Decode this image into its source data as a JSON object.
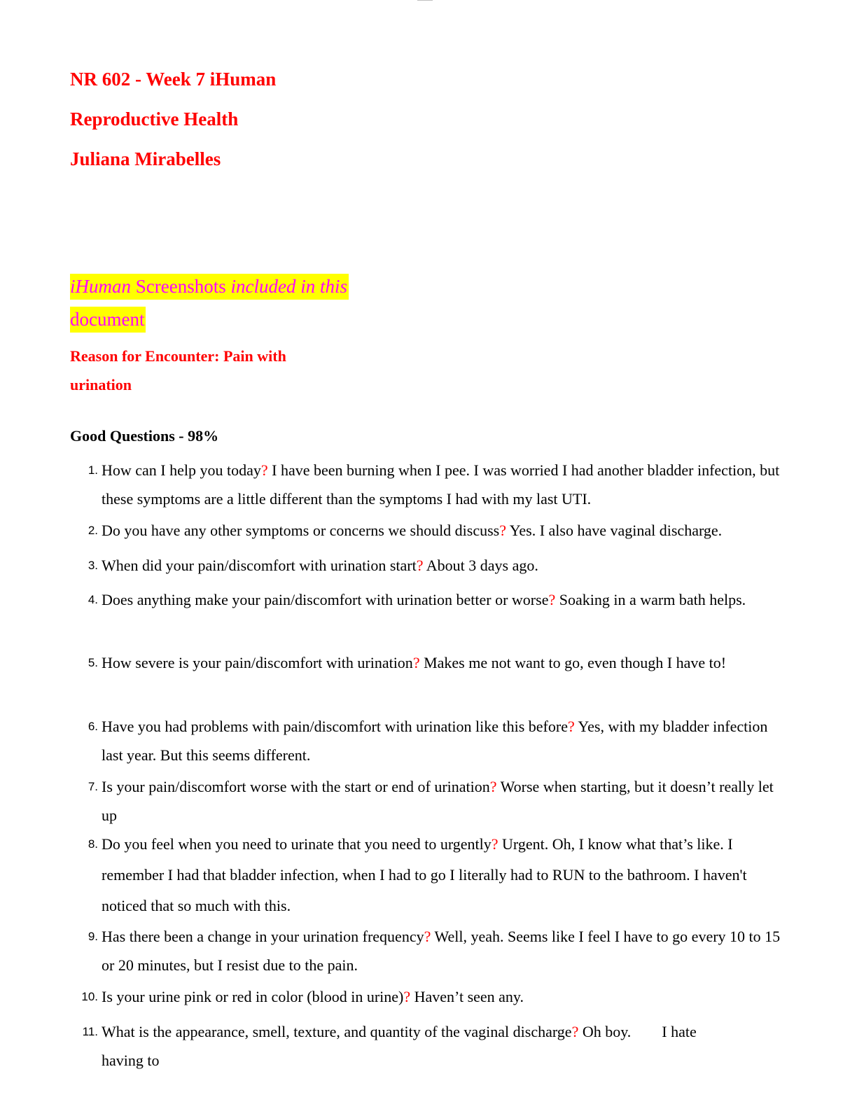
{
  "header": {
    "course": "NR 602 - Week 7 iHuman",
    "topic": "Reproductive Health",
    "student": "Juliana Mirabelles"
  },
  "note": {
    "line1_a": "iHuman",
    "line1_b": " Screenshots ",
    "line1_c": "included in this",
    "line2": "document"
  },
  "reason": "Reason for Encounter: Pain with urination",
  "section_title": "Good Questions - 98%",
  "questions": [
    {
      "num": "1.",
      "q": "How can I help you today",
      "a": " I have been burning when I pee. I was worried I had another bladder infection, but these symptoms are a little different than the symptoms I had with my last UTI."
    },
    {
      "num": "2.",
      "q": "Do you have any other symptoms or concerns we should discuss",
      "a": " Yes. I also have vaginal discharge."
    },
    {
      "num": "3.",
      "q": "When did your pain/discomfort with urination start",
      "a": " About 3 days ago."
    },
    {
      "num": "4.",
      "q": "Does anything make your pain/discomfort with urination better or worse",
      "a": " Soaking in a warm bath helps."
    },
    {
      "num": "5.",
      "q": "How severe is your pain/discomfort with urination",
      "a": " Makes me not want to go, even though I have to!"
    },
    {
      "num": "6.",
      "q": "Have you had problems with pain/discomfort with urination like this before",
      "a": " Yes, with my bladder infection last year. But this seems different."
    },
    {
      "num": "7.",
      "q": "Is your pain/discomfort worse with the start or end of urination",
      "a": " Worse when starting, but it doesn’t really let up"
    },
    {
      "num": "8.",
      "q": "Do you feel when you need to urinate that you need to urgently",
      "a": " Urgent. Oh, I know what that’s like. I remember I had that bladder infection, when I had to go I literally had to RUN to the bathroom. I haven't noticed that so much with this."
    },
    {
      "num": "9.",
      "q": "Has there been a change in your urination frequency",
      "a": " Well, yeah. Seems like I feel I have to go every 10 to 15 or 20 minutes, but I resist due to the pain."
    },
    {
      "num": "10.",
      "q": "Is your urine pink or red in color (blood in urine)",
      "a": " Haven’t seen any."
    },
    {
      "num": "11.",
      "q": "What is the appearance, smell, texture, and quantity of the vaginal discharge",
      "a": " Oh boy.        I hate having to"
    }
  ],
  "question_mark": "?",
  "colors": {
    "heading_red": "#ff0000",
    "highlight_yellow": "#ffff00",
    "highlight_text_magenta": "#ff00ff",
    "body_text": "#000000"
  }
}
